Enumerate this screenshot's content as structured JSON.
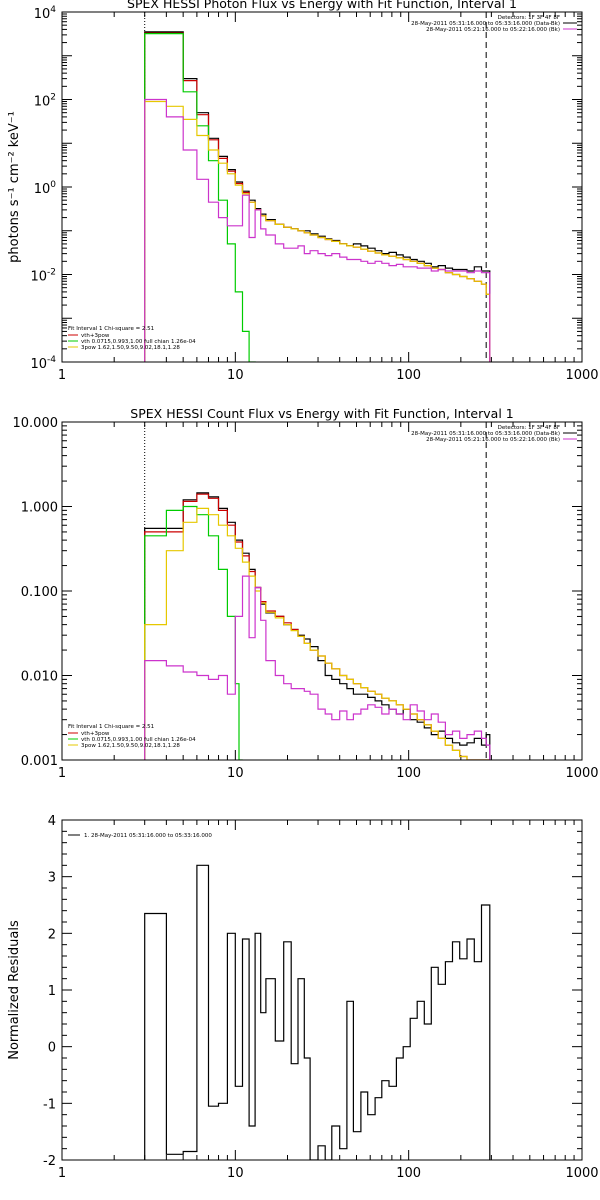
{
  "chart_data": [
    {
      "type": "line",
      "title": "SPEX HESSI Photon Flux vs Energy with Fit Function, Interval 1",
      "ylabel": "photons s⁻¹ cm⁻² keV⁻¹",
      "xscale": "log",
      "yscale": "log",
      "xlim": [
        1,
        1000
      ],
      "ylim": [
        0.0001,
        10000
      ],
      "xticks": [
        1,
        10,
        100,
        1000
      ],
      "xticklabels": [
        "1",
        "10",
        "100",
        "1000"
      ],
      "yticks": [
        0.0001,
        0.01,
        1,
        100,
        10000
      ],
      "legend_top": [
        "Detectors: 1F 3F 4F 8F",
        "28-May-2011 05:31:16.000 to 05:33:16.000 (Data-Bk)",
        "28-May-2011 05:21:16.000 to 05:22:16.000 (Bk)"
      ],
      "legend_top_colors": [
        "",
        "#000000",
        "#cc33cc"
      ],
      "legend_bottom_header": "Fit Interval 1    Chi-square = 2.51",
      "legend_bottom": [
        "vth+3pow",
        "vth 0.0715,0.993,1.00  full chian 1.26e-04",
        "3pow 1.62,1.50,9.50,9.02,18.1,1.28"
      ],
      "legend_bottom_colors": [
        "#cc0000",
        "#00cc00",
        "#e6c800"
      ],
      "vlines": [
        {
          "x": 3,
          "style": "dotted"
        },
        {
          "x": 280,
          "style": "dashed"
        }
      ],
      "series": [
        {
          "color": "#000000",
          "x": [
            3,
            4,
            5,
            6,
            7,
            8,
            9,
            10,
            11,
            12,
            13,
            14,
            15,
            17,
            19,
            21,
            23,
            25,
            27,
            30,
            33,
            36,
            40,
            44,
            48,
            53,
            58,
            64,
            70,
            77,
            85,
            93,
            102,
            112,
            123,
            135,
            148,
            163,
            179,
            197,
            217,
            239,
            263,
            280
          ],
          "y": [
            3500,
            3500,
            300,
            50,
            13,
            5,
            2.5,
            1.3,
            0.8,
            0.5,
            0.32,
            0.24,
            0.18,
            0.14,
            0.12,
            0.11,
            0.1,
            0.1,
            0.085,
            0.075,
            0.065,
            0.06,
            0.05,
            0.045,
            0.05,
            0.045,
            0.04,
            0.035,
            0.03,
            0.032,
            0.028,
            0.025,
            0.022,
            0.02,
            0.018,
            0.015,
            0.016,
            0.014,
            0.013,
            0.013,
            0.012,
            0.015,
            0.012,
            0.012
          ]
        },
        {
          "color": "#cc0000",
          "x": [
            3,
            4,
            5,
            6,
            7,
            8,
            9,
            10,
            11,
            12,
            13,
            14,
            15,
            17,
            19,
            21,
            23,
            25,
            27,
            30,
            33,
            36,
            40,
            44,
            48,
            53,
            58,
            64,
            70,
            77,
            85,
            93,
            102,
            112,
            123,
            135,
            148,
            163,
            179,
            197,
            217,
            239,
            263,
            280
          ],
          "y": [
            3300,
            3300,
            270,
            45,
            12,
            4.5,
            2.3,
            1.2,
            0.75,
            0.45,
            0.3,
            0.22,
            0.17,
            0.14,
            0.12,
            0.11,
            0.1,
            0.09,
            0.08,
            0.07,
            0.063,
            0.057,
            0.05,
            0.045,
            0.042,
            0.038,
            0.034,
            0.031,
            0.028,
            0.026,
            0.024,
            0.022,
            0.02,
            0.018,
            0.016,
            0.014,
            0.013,
            0.011,
            0.01,
            0.009,
            0.008,
            0.007,
            0.006,
            0.0035
          ]
        },
        {
          "color": "#00cc00",
          "x": [
            3,
            4,
            5,
            6,
            7,
            8,
            9,
            10,
            11,
            12,
            12.5
          ],
          "y": [
            3200,
            3200,
            150,
            25,
            4,
            0.5,
            0.05,
            0.004,
            0.0005,
            0.0001,
            0.0001
          ]
        },
        {
          "color": "#e6c800",
          "x": [
            3,
            4,
            5,
            6,
            7,
            8,
            9,
            10,
            11,
            12,
            13,
            14,
            15,
            17,
            19,
            21,
            23,
            25,
            27,
            30,
            33,
            36,
            40,
            44,
            48,
            53,
            58,
            64,
            70,
            77,
            85,
            93,
            102,
            112,
            123,
            135,
            148,
            163,
            179,
            197,
            217,
            239,
            263,
            280
          ],
          "y": [
            90,
            70,
            35,
            15,
            7,
            3.5,
            2,
            1.1,
            0.7,
            0.45,
            0.3,
            0.22,
            0.17,
            0.14,
            0.12,
            0.11,
            0.1,
            0.09,
            0.08,
            0.07,
            0.063,
            0.057,
            0.05,
            0.045,
            0.042,
            0.038,
            0.034,
            0.031,
            0.028,
            0.026,
            0.024,
            0.022,
            0.02,
            0.018,
            0.016,
            0.014,
            0.013,
            0.011,
            0.01,
            0.009,
            0.008,
            0.007,
            0.006,
            0.0035
          ]
        },
        {
          "color": "#cc33cc",
          "x": [
            3,
            4,
            5,
            6,
            7,
            8,
            9,
            10,
            11,
            12,
            13,
            14,
            15,
            17,
            19,
            21,
            23,
            25,
            27,
            30,
            33,
            36,
            40,
            44,
            48,
            53,
            58,
            64,
            70,
            77,
            85,
            93,
            102,
            112,
            123,
            135,
            148,
            163,
            179,
            197,
            217,
            239,
            263,
            280
          ],
          "y": [
            100,
            40,
            7,
            1.5,
            0.45,
            0.2,
            0.13,
            0.13,
            0.65,
            0.07,
            0.3,
            0.11,
            0.08,
            0.05,
            0.04,
            0.04,
            0.045,
            0.03,
            0.035,
            0.03,
            0.027,
            0.03,
            0.025,
            0.022,
            0.022,
            0.02,
            0.018,
            0.02,
            0.018,
            0.016,
            0.017,
            0.015,
            0.015,
            0.014,
            0.014,
            0.012,
            0.013,
            0.012,
            0.012,
            0.012,
            0.011,
            0.012,
            0.011,
            0.011
          ]
        }
      ]
    },
    {
      "type": "line",
      "title": "SPEX HESSI Count Flux vs Energy with Fit Function, Interval 1",
      "xscale": "log",
      "yscale": "log",
      "xlim": [
        1,
        1000
      ],
      "ylim": [
        0.001,
        10
      ],
      "xticks": [
        1,
        10,
        100,
        1000
      ],
      "xticklabels": [
        "1",
        "10",
        "100",
        "1000"
      ],
      "yticks": [
        0.001,
        0.01,
        0.1,
        1,
        10
      ],
      "yticklabels": [
        "0.001",
        "0.010",
        "0.100",
        "1.000",
        "10.000"
      ],
      "legend_top": [
        "Detectors: 1F 3F 4F 8F",
        "28-May-2011 05:31:16.000 to 05:33:16.000 (Data-Bk)",
        "28-May-2011 05:21:16.000 to 05:22:16.000 (Bk)"
      ],
      "legend_top_colors": [
        "",
        "#000000",
        "#cc33cc"
      ],
      "legend_bottom_header": "Fit Interval 1    Chi-square = 2.51",
      "legend_bottom": [
        "vth+3pow",
        "vth 0.0715,0.993,1.00  full chian 1.26e-04",
        "3pow 1.62,1.50,9.50,9.02,18.1,1.28"
      ],
      "legend_bottom_colors": [
        "#cc0000",
        "#00cc00",
        "#e6c800"
      ],
      "vlines": [
        {
          "x": 3,
          "style": "dotted"
        },
        {
          "x": 280,
          "style": "dashed"
        }
      ],
      "series": [
        {
          "color": "#000000",
          "x": [
            3,
            4,
            5,
            6,
            7,
            8,
            9,
            10,
            11,
            12,
            13,
            14,
            15,
            17,
            19,
            21,
            23,
            25,
            27,
            30,
            33,
            36,
            40,
            44,
            48,
            53,
            58,
            64,
            70,
            77,
            85,
            93,
            102,
            112,
            123,
            135,
            148,
            163,
            179,
            197,
            217,
            239,
            263,
            280
          ],
          "y": [
            0.55,
            0.55,
            1.2,
            1.45,
            1.3,
            0.95,
            0.65,
            0.4,
            0.28,
            0.18,
            0.11,
            0.07,
            0.055,
            0.05,
            0.04,
            0.035,
            0.03,
            0.027,
            0.022,
            0.015,
            0.01,
            0.009,
            0.008,
            0.007,
            0.006,
            0.006,
            0.0055,
            0.005,
            0.0045,
            0.004,
            0.0035,
            0.004,
            0.003,
            0.0028,
            0.0024,
            0.002,
            0.0022,
            0.0018,
            0.0016,
            0.0015,
            0.0016,
            0.0018,
            0.0015,
            0.002
          ]
        },
        {
          "color": "#cc0000",
          "x": [
            3,
            4,
            5,
            6,
            7,
            8,
            9,
            10,
            11,
            12,
            13,
            14,
            15,
            17,
            19,
            21,
            23,
            25,
            27,
            30,
            33,
            36,
            40,
            44,
            48,
            53,
            58,
            64,
            70,
            77,
            85,
            93,
            102,
            112,
            123,
            135,
            148,
            163,
            179,
            197,
            217,
            239,
            263,
            280
          ],
          "y": [
            0.5,
            0.5,
            1.15,
            1.4,
            1.25,
            0.9,
            0.6,
            0.38,
            0.26,
            0.17,
            0.11,
            0.075,
            0.058,
            0.05,
            0.042,
            0.035,
            0.029,
            0.024,
            0.02,
            0.017,
            0.014,
            0.012,
            0.01,
            0.009,
            0.008,
            0.0072,
            0.0065,
            0.006,
            0.0054,
            0.005,
            0.0045,
            0.004,
            0.0035,
            0.003,
            0.0026,
            0.0022,
            0.0018,
            0.0015,
            0.0013,
            0.0011,
            0.001,
            0.001,
            0.001,
            0.001
          ]
        },
        {
          "color": "#00cc00",
          "x": [
            3,
            4,
            5,
            6,
            7,
            8,
            9,
            10,
            10.5
          ],
          "y": [
            0.45,
            0.9,
            1.0,
            0.8,
            0.45,
            0.18,
            0.05,
            0.008,
            0.001
          ]
        },
        {
          "color": "#e6c800",
          "x": [
            3,
            4,
            5,
            6,
            7,
            8,
            9,
            10,
            11,
            12,
            13,
            14,
            15,
            17,
            19,
            21,
            23,
            25,
            27,
            30,
            33,
            36,
            40,
            44,
            48,
            53,
            58,
            64,
            70,
            77,
            85,
            93,
            102,
            112,
            123,
            135,
            148,
            163,
            179,
            197,
            217,
            239,
            263,
            280
          ],
          "y": [
            0.04,
            0.3,
            0.65,
            0.95,
            0.8,
            0.6,
            0.45,
            0.32,
            0.22,
            0.15,
            0.1,
            0.072,
            0.056,
            0.048,
            0.04,
            0.034,
            0.029,
            0.024,
            0.02,
            0.017,
            0.014,
            0.012,
            0.01,
            0.009,
            0.008,
            0.0072,
            0.0065,
            0.006,
            0.0054,
            0.005,
            0.0045,
            0.004,
            0.0035,
            0.003,
            0.0026,
            0.0022,
            0.0018,
            0.0015,
            0.0013,
            0.0011,
            0.001,
            0.001,
            0.001,
            0.001
          ]
        },
        {
          "color": "#cc33cc",
          "x": [
            3,
            4,
            5,
            6,
            7,
            8,
            9,
            10,
            11,
            12,
            13,
            14,
            15,
            17,
            19,
            21,
            23,
            25,
            27,
            30,
            33,
            36,
            40,
            44,
            48,
            53,
            58,
            64,
            70,
            77,
            85,
            93,
            102,
            112,
            123,
            135,
            148,
            163,
            179,
            197,
            217,
            239,
            263,
            280
          ],
          "y": [
            0.015,
            0.013,
            0.011,
            0.01,
            0.009,
            0.01,
            0.006,
            0.05,
            0.15,
            0.028,
            0.11,
            0.045,
            0.015,
            0.01,
            0.008,
            0.007,
            0.007,
            0.0065,
            0.006,
            0.004,
            0.0035,
            0.003,
            0.0038,
            0.003,
            0.0035,
            0.004,
            0.0045,
            0.0042,
            0.0035,
            0.004,
            0.0035,
            0.003,
            0.0045,
            0.0038,
            0.003,
            0.0035,
            0.0028,
            0.002,
            0.0022,
            0.0018,
            0.002,
            0.0022,
            0.0018,
            0.0015
          ]
        }
      ]
    },
    {
      "type": "line",
      "ylabel": "Normalized Residuals",
      "xscale": "log",
      "yscale": "linear",
      "xlim": [
        1,
        1000
      ],
      "ylim": [
        -2,
        4
      ],
      "xticks": [
        1,
        10,
        100,
        1000
      ],
      "xticklabels": [
        "1",
        "10",
        "100",
        "1000"
      ],
      "yticks": [
        -2,
        -1,
        0,
        1,
        2,
        3,
        4
      ],
      "legend": [
        "1. 28-May-2011 05:31:16.000 to 05:33:16.000"
      ],
      "series": [
        {
          "color": "#000000",
          "x": [
            3,
            4,
            5,
            6,
            7,
            8,
            9,
            10,
            11,
            12,
            13,
            14,
            15,
            17,
            19,
            21,
            23,
            25,
            27,
            30,
            33,
            36,
            40,
            44,
            48,
            53,
            58,
            64,
            70,
            77,
            85,
            93,
            102,
            112,
            123,
            135,
            148,
            163,
            179,
            197,
            217,
            239,
            263,
            280
          ],
          "y": [
            2.35,
            -1.9,
            -1.85,
            3.2,
            -1.05,
            -1.0,
            2.0,
            -0.7,
            1.9,
            -1.4,
            2.0,
            0.6,
            1.2,
            0.1,
            1.85,
            -0.3,
            1.2,
            -0.2,
            -2.0,
            -1.75,
            -2.0,
            -1.4,
            -1.8,
            0.8,
            -1.5,
            -0.8,
            -1.2,
            -0.9,
            -0.6,
            -0.7,
            -0.2,
            0.0,
            0.5,
            0.8,
            0.4,
            1.4,
            1.1,
            1.5,
            1.85,
            1.55,
            1.9,
            1.5,
            2.5,
            2.5
          ]
        }
      ]
    }
  ]
}
